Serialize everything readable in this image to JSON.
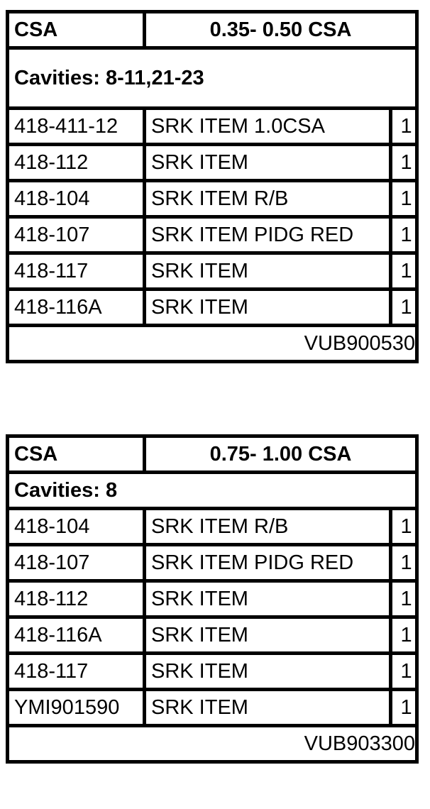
{
  "tables": [
    {
      "header_label": "CSA",
      "header_range": "0.35- 0.50 CSA",
      "cavities": "Cavities: 8-11,21-23",
      "rows": [
        {
          "part": "418-411-12",
          "desc": "SRK ITEM 1.0CSA",
          "qty": "1"
        },
        {
          "part": "418-112",
          "desc": "SRK ITEM",
          "qty": "1"
        },
        {
          "part": "418-104",
          "desc": "SRK ITEM R/B",
          "qty": "1"
        },
        {
          "part": "418-107",
          "desc": "SRK ITEM PIDG RED",
          "qty": "1"
        },
        {
          "part": "418-117",
          "desc": "SRK ITEM",
          "qty": "1"
        },
        {
          "part": "418-116A",
          "desc": "SRK ITEM",
          "qty": "1"
        }
      ],
      "footer": "VUB900530"
    },
    {
      "header_label": "CSA",
      "header_range": "0.75- 1.00 CSA",
      "cavities": "Cavities: 8",
      "rows": [
        {
          "part": "418-104",
          "desc": "SRK ITEM R/B",
          "qty": "1"
        },
        {
          "part": "418-107",
          "desc": "SRK ITEM PIDG RED",
          "qty": "1"
        },
        {
          "part": "418-112",
          "desc": "SRK ITEM",
          "qty": "1"
        },
        {
          "part": "418-116A",
          "desc": "SRK ITEM",
          "qty": "1"
        },
        {
          "part": "418-117",
          "desc": "SRK ITEM",
          "qty": "1"
        },
        {
          "part": "YMI901590",
          "desc": "SRK ITEM",
          "qty": "1"
        }
      ],
      "footer": "VUB903300"
    }
  ]
}
